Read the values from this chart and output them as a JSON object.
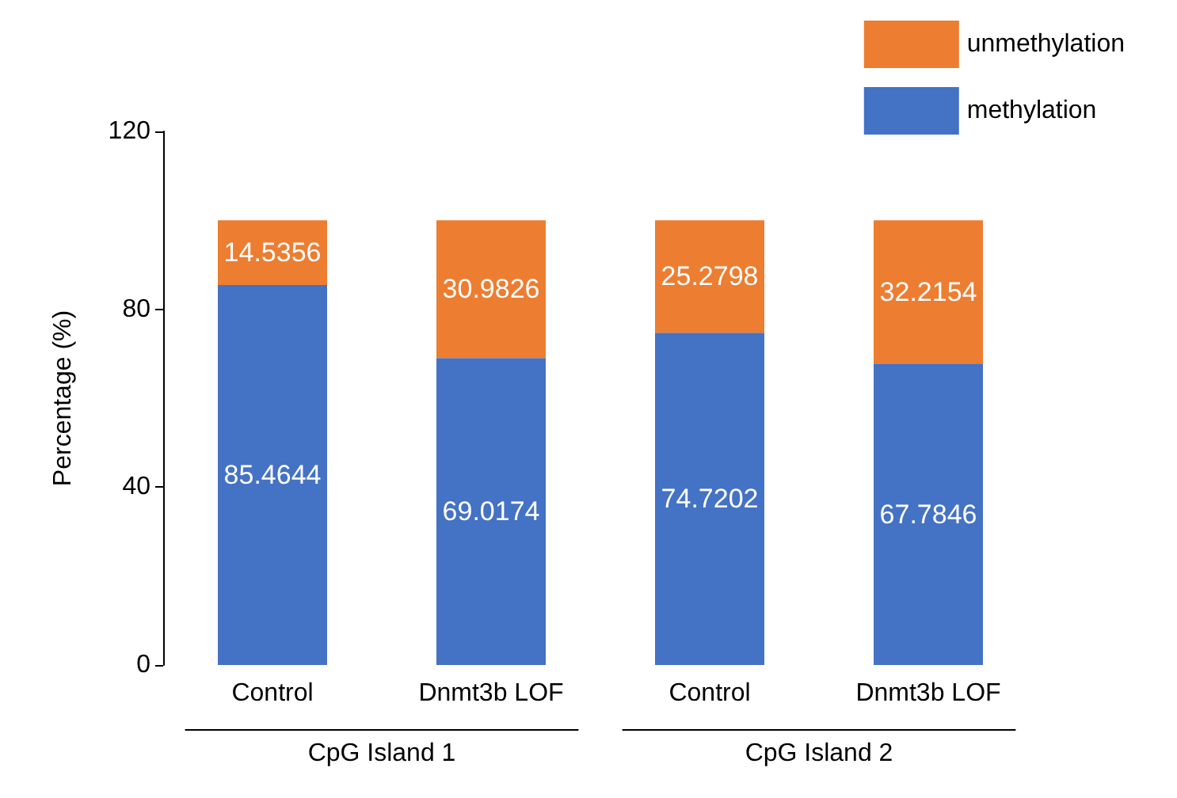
{
  "chart_data": {
    "type": "bar",
    "stacked": true,
    "ylabel": "Percentage (%)",
    "categories": [
      "Control",
      "Dnmt3b LOF",
      "Control",
      "Dnmt3b LOF"
    ],
    "series": [
      {
        "name": "methylation",
        "color": "#4472c4",
        "values": [
          85.4644,
          69.0174,
          74.7202,
          67.7846
        ]
      },
      {
        "name": "unmethylation",
        "color": "#ed7d31",
        "values": [
          14.5356,
          30.9826,
          25.2798,
          32.2154
        ]
      }
    ],
    "ylim": [
      0,
      120
    ],
    "yticks": [
      0,
      40,
      80,
      120
    ],
    "grid": false,
    "legend": "top right",
    "data_labels": true,
    "annotations": [
      "CpG Island 1",
      "CpG Island 2"
    ]
  }
}
